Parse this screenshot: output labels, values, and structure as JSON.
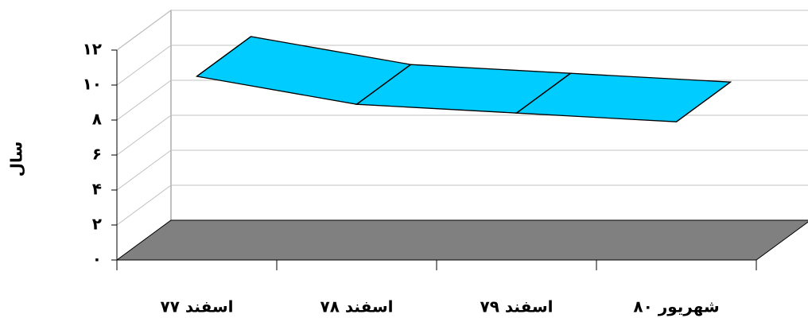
{
  "chart_data": {
    "type": "line3d",
    "y_label": "سال",
    "categories": [
      "اسفند ۷۷",
      "اسفند ۷۸",
      "اسفند ۷۹",
      "شهریور ۸۰"
    ],
    "values": [
      10.5,
      8.9,
      8.4,
      7.9
    ],
    "color": "#00ccff",
    "ylim": [
      0,
      12
    ],
    "yticks": [
      {
        "value": 0,
        "label": "۰"
      },
      {
        "value": 2,
        "label": "۲"
      },
      {
        "value": 4,
        "label": "۴"
      },
      {
        "value": 6,
        "label": "۶"
      },
      {
        "value": 8,
        "label": "۸"
      },
      {
        "value": 10,
        "label": "۱۰"
      },
      {
        "value": 12,
        "label": "۱۲"
      }
    ],
    "grid": true
  }
}
